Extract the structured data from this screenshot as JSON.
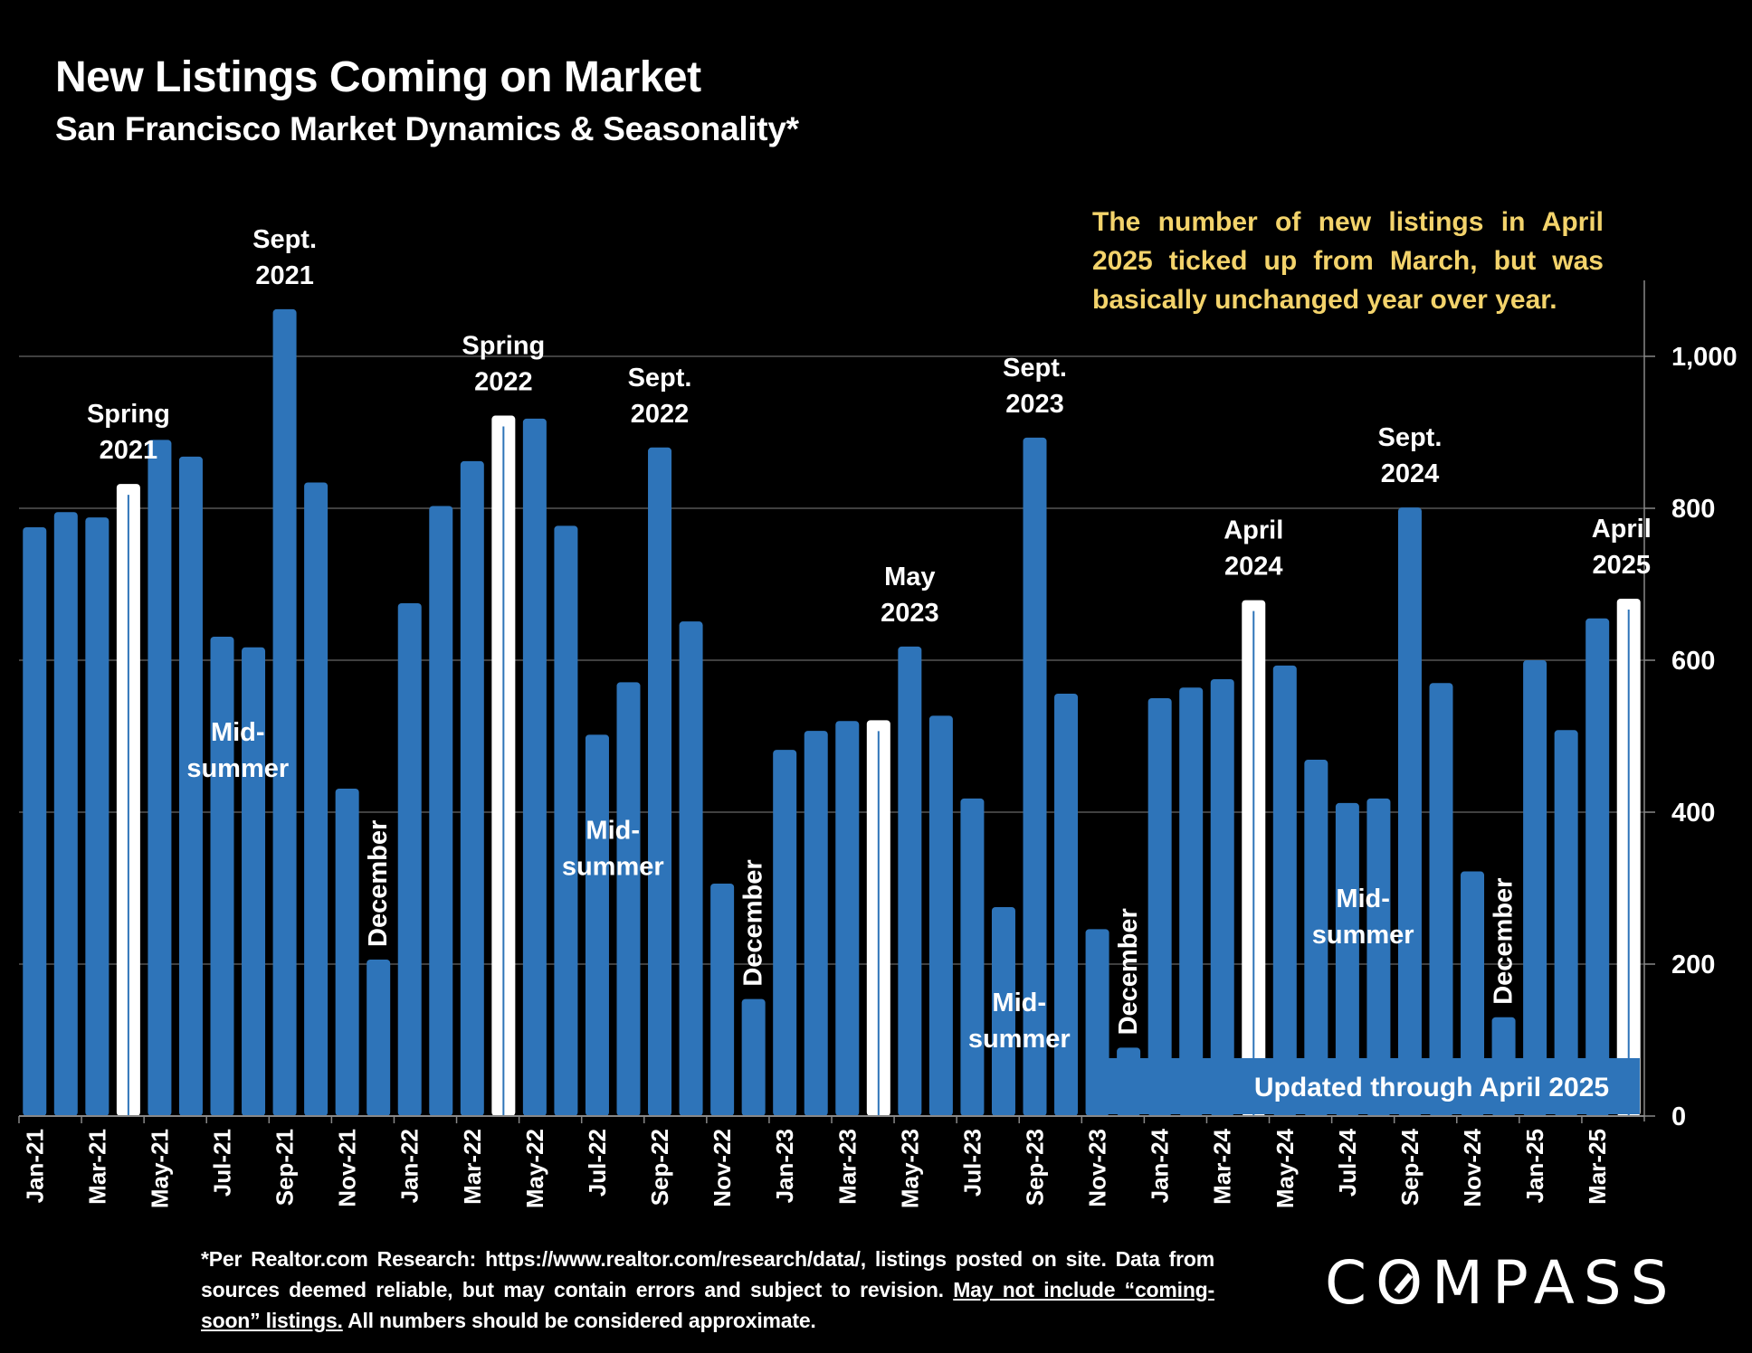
{
  "header": {
    "title": "New Listings Coming on Market",
    "subtitle": "San Francisco Market Dynamics & Seasonality*"
  },
  "note": "The number of new listings in April 2025 ticked up from March, but was basically unchanged year over year.",
  "footer": {
    "line_a": "*Per Realtor.com Research:  https://www.realtor.com/research/data/, listings posted on site. Data from sources deemed reliable, but may contain errors and subject to revision. ",
    "underlined": "May not include “coming-soon” listings.",
    "line_b": " All numbers should be considered approximate."
  },
  "logo": {
    "text_before": "C",
    "text_o": "O",
    "text_after": "MPASS"
  },
  "colors": {
    "bar": "#2e74b9",
    "highlight": "#ffffff",
    "note": "#f3d36b",
    "banner": "#2e74b9",
    "grid": "#555555"
  },
  "chart_data": {
    "type": "bar",
    "title": "New Listings Coming on Market",
    "subtitle": "San Francisco Market Dynamics & Seasonality*",
    "xlabel": "",
    "ylabel": "",
    "ylim": [
      0,
      1100
    ],
    "yticks": [
      0,
      200,
      400,
      600,
      800,
      1000
    ],
    "ytick_labels": [
      "0",
      "200",
      "400",
      "600",
      "800",
      "1,000"
    ],
    "y_axis_side": "right",
    "grid": true,
    "categories": [
      "Jan-21",
      "Feb-21",
      "Mar-21",
      "Apr-21",
      "May-21",
      "Jun-21",
      "Jul-21",
      "Aug-21",
      "Sep-21",
      "Oct-21",
      "Nov-21",
      "Dec-21",
      "Jan-22",
      "Feb-22",
      "Mar-22",
      "Apr-22",
      "May-22",
      "Jun-22",
      "Jul-22",
      "Aug-22",
      "Sep-22",
      "Oct-22",
      "Nov-22",
      "Dec-22",
      "Jan-23",
      "Feb-23",
      "Mar-23",
      "Apr-23",
      "May-23",
      "Jun-23",
      "Jul-23",
      "Aug-23",
      "Sep-23",
      "Oct-23",
      "Nov-23",
      "Dec-23",
      "Jan-24",
      "Feb-24",
      "Mar-24",
      "Apr-24",
      "May-24",
      "Jun-24",
      "Jul-24",
      "Aug-24",
      "Sep-24",
      "Oct-24",
      "Nov-24",
      "Dec-24",
      "Jan-25",
      "Feb-25",
      "Mar-25",
      "Apr-25"
    ],
    "xtick_labels_every": 2,
    "values": [
      775,
      795,
      788,
      832,
      890,
      868,
      631,
      617,
      1062,
      834,
      431,
      206,
      675,
      803,
      862,
      922,
      918,
      777,
      502,
      571,
      880,
      651,
      306,
      154,
      482,
      507,
      520,
      521,
      618,
      527,
      418,
      275,
      893,
      556,
      246,
      90,
      550,
      564,
      575,
      679,
      593,
      469,
      412,
      418,
      801,
      570,
      322,
      130,
      600,
      508,
      655,
      681
    ],
    "highlighted": [
      "Apr-21",
      "Apr-22",
      "Apr-23",
      "Apr-24",
      "Apr-25"
    ],
    "annotations": [
      {
        "text": [
          "Spring",
          "2021"
        ],
        "at": "Apr-21",
        "anchor": "above"
      },
      {
        "text": [
          "Sept.",
          "2021"
        ],
        "at": "Sep-21",
        "anchor": "above"
      },
      {
        "text": [
          "Mid-",
          "summer"
        ],
        "at": "Jul-21",
        "anchor": "inside"
      },
      {
        "text": [
          "December"
        ],
        "at": "Dec-21",
        "anchor": "vertical"
      },
      {
        "text": [
          "Spring",
          "2022"
        ],
        "at": "Apr-22",
        "anchor": "above"
      },
      {
        "text": [
          "Sept.",
          "2022"
        ],
        "at": "Sep-22",
        "anchor": "above"
      },
      {
        "text": [
          "Mid-",
          "summer"
        ],
        "at": "Jul-22",
        "anchor": "inside"
      },
      {
        "text": [
          "December"
        ],
        "at": "Dec-22",
        "anchor": "vertical"
      },
      {
        "text": [
          "May",
          "2023"
        ],
        "at": "May-23",
        "anchor": "above"
      },
      {
        "text": [
          "Mid-",
          "summer"
        ],
        "at": "Aug-23",
        "anchor": "inside"
      },
      {
        "text": [
          "Sept.",
          "2023"
        ],
        "at": "Sep-23",
        "anchor": "above"
      },
      {
        "text": [
          "December"
        ],
        "at": "Dec-23",
        "anchor": "vertical"
      },
      {
        "text": [
          "April",
          "2024"
        ],
        "at": "Apr-24",
        "anchor": "above"
      },
      {
        "text": [
          "Mid-",
          "summer"
        ],
        "at": "Jul-24",
        "anchor": "inside"
      },
      {
        "text": [
          "Sept.",
          "2024"
        ],
        "at": "Sep-24",
        "anchor": "above"
      },
      {
        "text": [
          "December"
        ],
        "at": "Dec-24",
        "anchor": "vertical"
      },
      {
        "text": [
          "April",
          "2025"
        ],
        "at": "Apr-25",
        "anchor": "above"
      }
    ],
    "banner": "Updated through April 2025"
  }
}
